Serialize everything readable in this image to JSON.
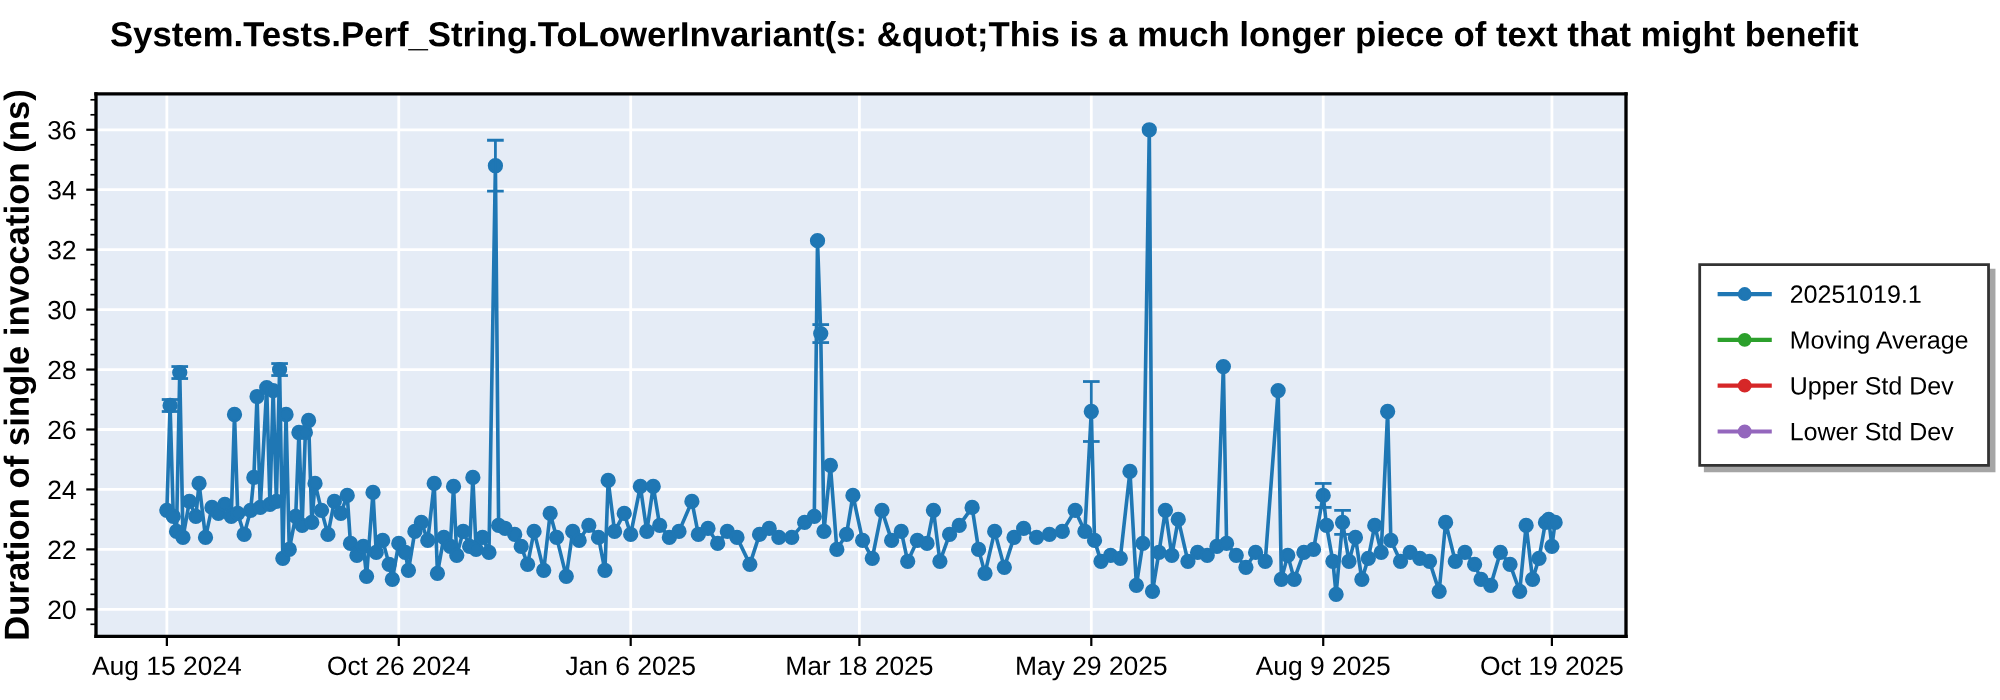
{
  "chart_data": {
    "type": "line",
    "title": "System.Tests.Perf_String.ToLowerInvariant(s: &quot;This is a much longer piece of text that might benefit",
    "ylabel": "Duration of single invocation (ns)",
    "x": [
      "2024-08-15",
      "2024-08-16",
      "2024-08-17",
      "2024-08-18",
      "2024-08-19",
      "2024-08-20",
      "2024-08-22",
      "2024-08-24",
      "2024-08-25",
      "2024-08-27",
      "2024-08-29",
      "2024-08-31",
      "2024-09-02",
      "2024-09-04",
      "2024-09-05",
      "2024-09-06",
      "2024-09-08",
      "2024-09-10",
      "2024-09-11",
      "2024-09-12",
      "2024-09-13",
      "2024-09-15",
      "2024-09-16",
      "2024-09-17",
      "2024-09-18",
      "2024-09-19",
      "2024-09-20",
      "2024-09-21",
      "2024-09-22",
      "2024-09-24",
      "2024-09-25",
      "2024-09-26",
      "2024-09-27",
      "2024-09-28",
      "2024-09-29",
      "2024-09-30",
      "2024-10-02",
      "2024-10-04",
      "2024-10-06",
      "2024-10-08",
      "2024-10-10",
      "2024-10-11",
      "2024-10-13",
      "2024-10-15",
      "2024-10-16",
      "2024-10-18",
      "2024-10-19",
      "2024-10-21",
      "2024-10-23",
      "2024-10-24",
      "2024-10-26",
      "2024-10-28",
      "2024-10-29",
      "2024-10-31",
      "2024-11-02",
      "2024-11-04",
      "2024-11-06",
      "2024-11-07",
      "2024-11-09",
      "2024-11-11",
      "2024-11-12",
      "2024-11-13",
      "2024-11-15",
      "2024-11-17",
      "2024-11-18",
      "2024-11-19",
      "2024-11-21",
      "2024-11-23",
      "2024-11-25",
      "2024-11-26",
      "2024-11-28",
      "2024-12-01",
      "2024-12-03",
      "2024-12-05",
      "2024-12-07",
      "2024-12-10",
      "2024-12-12",
      "2024-12-14",
      "2024-12-17",
      "2024-12-19",
      "2024-12-21",
      "2024-12-24",
      "2024-12-27",
      "2024-12-29",
      "2024-12-30",
      "2025-01-01",
      "2025-01-04",
      "2025-01-06",
      "2025-01-09",
      "2025-01-11",
      "2025-01-13",
      "2025-01-15",
      "2025-01-18",
      "2025-01-21",
      "2025-01-25",
      "2025-01-27",
      "2025-01-30",
      "2025-02-02",
      "2025-02-05",
      "2025-02-08",
      "2025-02-12",
      "2025-02-15",
      "2025-02-18",
      "2025-02-21",
      "2025-02-25",
      "2025-03-01",
      "2025-03-04",
      "2025-03-05",
      "2025-03-06",
      "2025-03-07",
      "2025-03-09",
      "2025-03-11",
      "2025-03-14",
      "2025-03-16",
      "2025-03-19",
      "2025-03-22",
      "2025-03-25",
      "2025-03-28",
      "2025-03-31",
      "2025-04-02",
      "2025-04-05",
      "2025-04-08",
      "2025-04-10",
      "2025-04-12",
      "2025-04-15",
      "2025-04-18",
      "2025-04-22",
      "2025-04-24",
      "2025-04-26",
      "2025-04-29",
      "2025-05-02",
      "2025-05-05",
      "2025-05-08",
      "2025-05-12",
      "2025-05-16",
      "2025-05-20",
      "2025-05-24",
      "2025-05-27",
      "2025-05-29",
      "2025-05-30",
      "2025-06-01",
      "2025-06-04",
      "2025-06-07",
      "2025-06-10",
      "2025-06-12",
      "2025-06-14",
      "2025-06-16",
      "2025-06-17",
      "2025-06-19",
      "2025-06-21",
      "2025-06-23",
      "2025-06-25",
      "2025-06-28",
      "2025-07-01",
      "2025-07-04",
      "2025-07-07",
      "2025-07-09",
      "2025-07-10",
      "2025-07-13",
      "2025-07-16",
      "2025-07-19",
      "2025-07-22",
      "2025-07-26",
      "2025-07-27",
      "2025-07-29",
      "2025-07-31",
      "2025-08-03",
      "2025-08-06",
      "2025-08-09",
      "2025-08-10",
      "2025-08-12",
      "2025-08-13",
      "2025-08-15",
      "2025-08-17",
      "2025-08-19",
      "2025-08-21",
      "2025-08-23",
      "2025-08-25",
      "2025-08-27",
      "2025-08-29",
      "2025-08-30",
      "2025-09-02",
      "2025-09-05",
      "2025-09-08",
      "2025-09-11",
      "2025-09-14",
      "2025-09-16",
      "2025-09-19",
      "2025-09-22",
      "2025-09-25",
      "2025-09-27",
      "2025-09-30",
      "2025-10-03",
      "2025-10-06",
      "2025-10-09",
      "2025-10-11",
      "2025-10-13",
      "2025-10-15",
      "2025-10-17",
      "2025-10-18",
      "2025-10-19",
      "2025-10-20"
    ],
    "series": [
      {
        "name": "20251019.1",
        "color": "#1f77b4",
        "values": [
          23.3,
          26.8,
          23.1,
          22.6,
          27.9,
          22.4,
          23.6,
          23.1,
          24.2,
          22.4,
          23.4,
          23.2,
          23.5,
          23.1,
          26.5,
          23.2,
          22.5,
          23.3,
          24.4,
          27.1,
          23.4,
          27.4,
          23.5,
          27.3,
          23.6,
          28.0,
          21.7,
          26.5,
          22.0,
          23.1,
          25.9,
          22.8,
          25.9,
          26.3,
          22.9,
          24.2,
          23.3,
          22.5,
          23.6,
          23.2,
          23.8,
          22.2,
          21.8,
          22.1,
          21.1,
          23.9,
          21.9,
          22.3,
          21.5,
          21.0,
          22.2,
          21.9,
          21.3,
          22.6,
          22.9,
          22.3,
          24.2,
          21.2,
          22.4,
          22.1,
          24.1,
          21.8,
          22.6,
          22.1,
          24.4,
          22.0,
          22.4,
          21.9,
          34.8,
          22.8,
          22.7,
          22.5,
          22.1,
          21.5,
          22.6,
          21.3,
          23.2,
          22.4,
          21.1,
          22.6,
          22.3,
          22.8,
          22.4,
          21.3,
          24.3,
          22.6,
          23.2,
          22.5,
          24.1,
          22.6,
          24.1,
          22.8,
          22.4,
          22.6,
          23.6,
          22.5,
          22.7,
          22.2,
          22.6,
          22.4,
          21.5,
          22.5,
          22.7,
          22.4,
          22.4,
          22.9,
          23.1,
          32.3,
          29.2,
          22.6,
          24.8,
          22.0,
          22.5,
          23.8,
          22.3,
          21.7,
          23.3,
          22.3,
          22.6,
          21.6,
          22.3,
          22.2,
          23.3,
          21.6,
          22.5,
          22.8,
          23.4,
          22.0,
          21.2,
          22.6,
          21.4,
          22.4,
          22.7,
          22.4,
          22.5,
          22.6,
          23.3,
          22.6,
          26.6,
          22.3,
          21.6,
          21.8,
          21.7,
          24.6,
          20.8,
          22.2,
          36.0,
          20.6,
          21.9,
          23.3,
          21.8,
          23.0,
          21.6,
          21.9,
          21.8,
          22.1,
          28.1,
          22.2,
          21.8,
          21.4,
          21.9,
          21.6,
          27.3,
          21.0,
          21.8,
          21.0,
          21.9,
          22.0,
          23.8,
          22.8,
          21.6,
          20.5,
          22.9,
          21.6,
          22.4,
          21.0,
          21.7,
          22.8,
          21.9,
          26.6,
          22.3,
          21.6,
          21.9,
          21.7,
          21.6,
          20.6,
          22.9,
          21.6,
          21.9,
          21.5,
          21.0,
          20.8,
          21.9,
          21.5,
          20.6,
          22.8,
          21.0,
          21.7,
          22.9,
          23.0,
          22.1,
          22.9
        ],
        "errors": [
          null,
          0.2,
          null,
          null,
          0.2,
          null,
          null,
          null,
          null,
          null,
          null,
          null,
          null,
          null,
          null,
          null,
          null,
          null,
          null,
          null,
          null,
          null,
          null,
          null,
          null,
          0.2,
          null,
          null,
          null,
          null,
          null,
          null,
          null,
          null,
          null,
          null,
          null,
          null,
          null,
          null,
          null,
          null,
          null,
          null,
          null,
          null,
          null,
          null,
          null,
          null,
          null,
          null,
          null,
          null,
          null,
          null,
          null,
          null,
          null,
          null,
          null,
          null,
          null,
          null,
          null,
          null,
          null,
          null,
          0.85,
          null,
          null,
          null,
          null,
          null,
          null,
          null,
          null,
          null,
          null,
          null,
          null,
          null,
          null,
          null,
          null,
          null,
          null,
          null,
          null,
          null,
          null,
          null,
          null,
          null,
          null,
          null,
          null,
          null,
          null,
          null,
          null,
          null,
          null,
          null,
          null,
          null,
          null,
          null,
          0.3,
          null,
          null,
          null,
          null,
          null,
          null,
          null,
          null,
          null,
          null,
          null,
          null,
          null,
          null,
          null,
          null,
          null,
          null,
          null,
          null,
          null,
          null,
          null,
          null,
          null,
          null,
          null,
          null,
          null,
          1.0,
          null,
          null,
          null,
          null,
          null,
          null,
          null,
          null,
          null,
          null,
          null,
          null,
          null,
          null,
          null,
          null,
          null,
          null,
          null,
          null,
          null,
          null,
          null,
          null,
          null,
          null,
          null,
          null,
          null,
          0.4,
          null,
          null,
          null,
          0.4,
          null,
          null,
          null,
          null,
          null,
          null,
          null,
          null,
          null,
          null,
          null,
          null,
          null,
          null,
          null,
          null,
          null,
          null,
          null,
          null,
          null,
          null,
          null,
          null,
          null,
          null,
          null,
          null,
          null
        ]
      },
      {
        "name": "Moving Average",
        "color": "#2ca02c",
        "values": [
          null,
          null,
          null,
          null,
          null,
          null,
          null,
          null,
          null,
          null,
          null,
          null,
          null,
          null,
          null,
          null,
          null,
          null,
          null,
          null,
          null,
          null,
          null,
          null,
          null,
          null,
          null,
          null,
          null,
          null,
          null,
          null,
          null,
          null,
          null,
          null,
          null,
          null,
          null,
          null,
          null,
          null,
          null,
          null,
          null,
          null,
          null,
          null,
          null,
          null,
          null,
          null,
          null,
          null,
          null,
          null,
          null,
          null,
          null,
          null,
          null,
          null,
          null,
          null,
          null,
          null,
          null,
          null,
          null,
          null,
          null,
          null,
          null,
          null,
          null,
          null,
          null,
          null,
          null,
          null,
          null,
          null,
          null,
          null,
          null,
          null,
          null,
          null,
          null,
          null,
          null,
          null,
          null,
          null,
          null,
          null,
          null,
          null,
          null,
          null,
          null,
          null,
          null,
          null,
          null,
          null,
          null,
          null,
          null,
          null,
          null,
          null,
          null,
          null,
          null,
          null,
          null,
          null,
          null,
          null,
          null,
          null,
          null,
          null,
          null,
          null,
          null,
          null,
          null,
          null,
          null,
          null,
          null,
          null,
          null,
          null,
          null,
          null,
          null,
          null,
          null,
          null,
          null,
          null,
          null,
          null,
          null,
          null,
          null,
          null,
          null,
          null,
          null,
          null,
          null,
          null,
          null,
          null,
          null,
          null,
          null,
          null,
          null,
          null,
          null,
          null,
          null,
          null,
          null,
          null,
          null,
          null,
          null,
          null,
          null,
          null,
          null,
          null,
          null,
          null,
          null,
          null,
          null,
          null,
          null,
          null,
          null,
          null,
          null,
          null,
          null,
          null,
          null,
          null,
          null,
          null,
          null,
          null,
          null,
          null,
          null,
          null
        ]
      },
      {
        "name": "Upper Std Dev",
        "color": "#d62728",
        "values": [
          null,
          null,
          null,
          null,
          null,
          null,
          null,
          null,
          null,
          null,
          null,
          null,
          null,
          null,
          null,
          null,
          null,
          null,
          null,
          null,
          null,
          null,
          null,
          null,
          null,
          null,
          null,
          null,
          null,
          null,
          null,
          null,
          null,
          null,
          null,
          null,
          null,
          null,
          null,
          null,
          null,
          null,
          null,
          null,
          null,
          null,
          null,
          null,
          null,
          null,
          null,
          null,
          null,
          null,
          null,
          null,
          null,
          null,
          null,
          null,
          null,
          null,
          null,
          null,
          null,
          null,
          null,
          null,
          null,
          null,
          null,
          null,
          null,
          null,
          null,
          null,
          null,
          null,
          null,
          null,
          null,
          null,
          null,
          null,
          null,
          null,
          null,
          null,
          null,
          null,
          null,
          null,
          null,
          null,
          null,
          null,
          null,
          null,
          null,
          null,
          null,
          null,
          null,
          null,
          null,
          null,
          null,
          null,
          null,
          null,
          null,
          null,
          null,
          null,
          null,
          null,
          null,
          null,
          null,
          null,
          null,
          null,
          null,
          null,
          null,
          null,
          null,
          null,
          null,
          null,
          null,
          null,
          null,
          null,
          null,
          null,
          null,
          null,
          null,
          null,
          null,
          null,
          null,
          null,
          null,
          null,
          null,
          null,
          null,
          null,
          null,
          null,
          null,
          null,
          null,
          null,
          null,
          null,
          null,
          null,
          null,
          null,
          null,
          null,
          null,
          null,
          null,
          null,
          null,
          null,
          null,
          null,
          null,
          null,
          null,
          null,
          null,
          null,
          null,
          null,
          null,
          null,
          null,
          null,
          null,
          null,
          null,
          null,
          null,
          null,
          null,
          null,
          null,
          null,
          null,
          null,
          null,
          null,
          null,
          null,
          null,
          null
        ]
      },
      {
        "name": "Lower Std Dev",
        "color": "#9467bd",
        "values": [
          null,
          null,
          null,
          null,
          null,
          null,
          null,
          null,
          null,
          null,
          null,
          null,
          null,
          null,
          null,
          null,
          null,
          null,
          null,
          null,
          null,
          null,
          null,
          null,
          null,
          null,
          null,
          null,
          null,
          null,
          null,
          null,
          null,
          null,
          null,
          null,
          null,
          null,
          null,
          null,
          null,
          null,
          null,
          null,
          null,
          null,
          null,
          null,
          null,
          null,
          null,
          null,
          null,
          null,
          null,
          null,
          null,
          null,
          null,
          null,
          null,
          null,
          null,
          null,
          null,
          null,
          null,
          null,
          null,
          null,
          null,
          null,
          null,
          null,
          null,
          null,
          null,
          null,
          null,
          null,
          null,
          null,
          null,
          null,
          null,
          null,
          null,
          null,
          null,
          null,
          null,
          null,
          null,
          null,
          null,
          null,
          null,
          null,
          null,
          null,
          null,
          null,
          null,
          null,
          null,
          null,
          null,
          null,
          null,
          null,
          null,
          null,
          null,
          null,
          null,
          null,
          null,
          null,
          null,
          null,
          null,
          null,
          null,
          null,
          null,
          null,
          null,
          null,
          null,
          null,
          null,
          null,
          null,
          null,
          null,
          null,
          null,
          null,
          null,
          null,
          null,
          null,
          null,
          null,
          null,
          null,
          null,
          null,
          null,
          null,
          null,
          null,
          null,
          null,
          null,
          null,
          null,
          null,
          null,
          null,
          null,
          null,
          null,
          null,
          null,
          null,
          null,
          null,
          null,
          null,
          null,
          null,
          null,
          null,
          null,
          null,
          null,
          null,
          null,
          null,
          null,
          null,
          null,
          null,
          null,
          null,
          null,
          null,
          null,
          null,
          null,
          null,
          null,
          null,
          null,
          null,
          null,
          null,
          null,
          null,
          null,
          null
        ]
      }
    ],
    "xlim": [
      "2024-07-24",
      "2025-11-11"
    ],
    "xticks": [
      {
        "value": "2024-08-15",
        "label": "Aug 15 2024"
      },
      {
        "value": "2024-10-26",
        "label": "Oct 26 2024"
      },
      {
        "value": "2025-01-06",
        "label": "Jan 6 2025"
      },
      {
        "value": "2025-03-18",
        "label": "Mar 18 2025"
      },
      {
        "value": "2025-05-29",
        "label": "May 29 2025"
      },
      {
        "value": "2025-08-09",
        "label": "Aug 9 2025"
      },
      {
        "value": "2025-10-19",
        "label": "Oct 19 2025"
      }
    ],
    "ylim": [
      19.1,
      37.2
    ],
    "yticks": [
      20,
      22,
      24,
      26,
      28,
      30,
      32,
      34,
      36
    ],
    "grid": true,
    "legend": "right",
    "marker": "circle",
    "line_style": "solid"
  }
}
